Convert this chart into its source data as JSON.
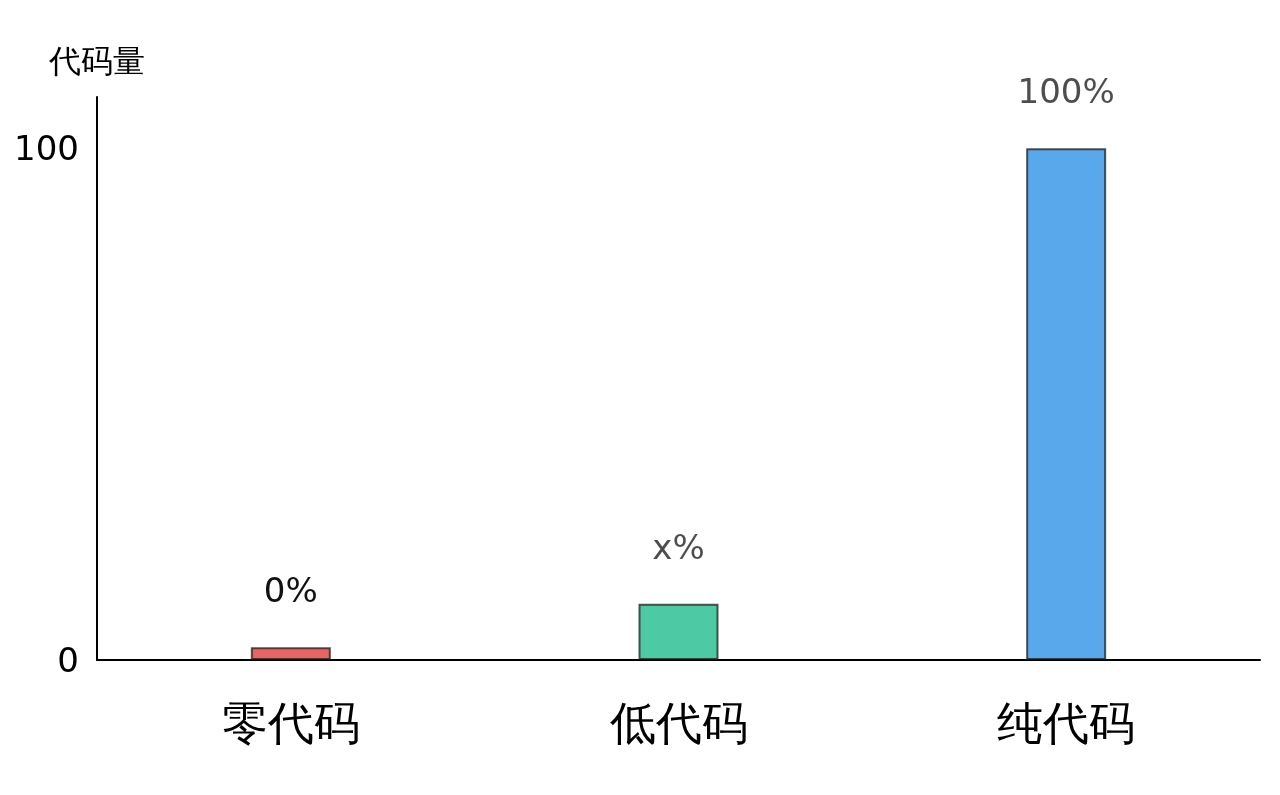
{
  "chart_data": {
    "type": "bar",
    "ylabel": "代码量",
    "categories": [
      "零代码",
      "低代码",
      "纯代码"
    ],
    "values": [
      2.5,
      11,
      100
    ],
    "value_labels": [
      null,
      "x%",
      "100%"
    ],
    "annotations": [
      {
        "text": "0%",
        "x": "零代码",
        "y": 2.5
      }
    ],
    "colors": [
      "#e03131",
      "#12b886",
      "#228be6"
    ],
    "ylim": [
      0,
      110
    ],
    "yticks": [
      0,
      100
    ],
    "grid": false
  }
}
